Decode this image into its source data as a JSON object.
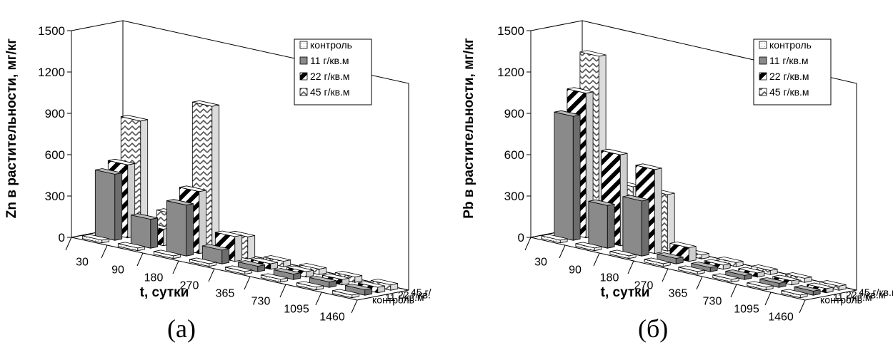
{
  "chart_data": [
    {
      "type": "bar3d",
      "caption": "(а)",
      "ylabel": "Zn в растительности, мг/кг",
      "xlabel": "t, сутки",
      "yticks": [
        "0",
        "300",
        "600",
        "900",
        "1200",
        "1500"
      ],
      "ylim": [
        0,
        1500
      ],
      "categories": [
        "30",
        "90",
        "180",
        "270",
        "365",
        "730",
        "1095",
        "1460"
      ],
      "depth_labels": [
        "контроль",
        "11 г/кв.м",
        "22 г/кв.",
        "45 г/"
      ],
      "legend": [
        "контроль",
        "11 г/кв.м",
        "22 г/кв.м",
        "45 г/кв.м"
      ],
      "series": [
        {
          "name": "контроль",
          "values": [
            20,
            20,
            20,
            20,
            20,
            20,
            20,
            20
          ]
        },
        {
          "name": "11 г/кв.м",
          "values": [
            480,
            210,
            370,
            100,
            40,
            40,
            40,
            40
          ]
        },
        {
          "name": "22 г/кв.м",
          "values": [
            530,
            120,
            450,
            180,
            40,
            40,
            40,
            40
          ]
        },
        {
          "name": "45 г/кв.м",
          "values": [
            830,
            210,
            1050,
            160,
            40,
            40,
            40,
            40
          ]
        }
      ]
    },
    {
      "type": "bar3d",
      "caption": "(б)",
      "ylabel": "Pb в растительности, мг/кг",
      "xlabel": "t, сутки",
      "yticks": [
        "0",
        "300",
        "600",
        "900",
        "1200",
        "1500"
      ],
      "ylim": [
        0,
        1500
      ],
      "categories": [
        "30",
        "90",
        "180",
        "270",
        "365",
        "730",
        "1095",
        "1460"
      ],
      "depth_labels": [
        "контроль",
        "11 г/кв.м",
        "22 г/кв.м",
        "45 г/кв.м"
      ],
      "legend": [
        "контроль",
        "11 г/кв.м",
        "22 г/кв.м",
        "45 г/кв.м"
      ],
      "series": [
        {
          "name": "контроль",
          "values": [
            20,
            20,
            20,
            20,
            20,
            20,
            20,
            20
          ]
        },
        {
          "name": "11 г/кв.м",
          "values": [
            900,
            310,
            400,
            40,
            30,
            30,
            30,
            30
          ]
        },
        {
          "name": "22 г/кв.м",
          "values": [
            1050,
            660,
            610,
            100,
            30,
            30,
            30,
            30
          ]
        },
        {
          "name": "45 г/кв.м",
          "values": [
            1300,
            410,
            410,
            30,
            30,
            30,
            30,
            30
          ]
        }
      ]
    }
  ]
}
